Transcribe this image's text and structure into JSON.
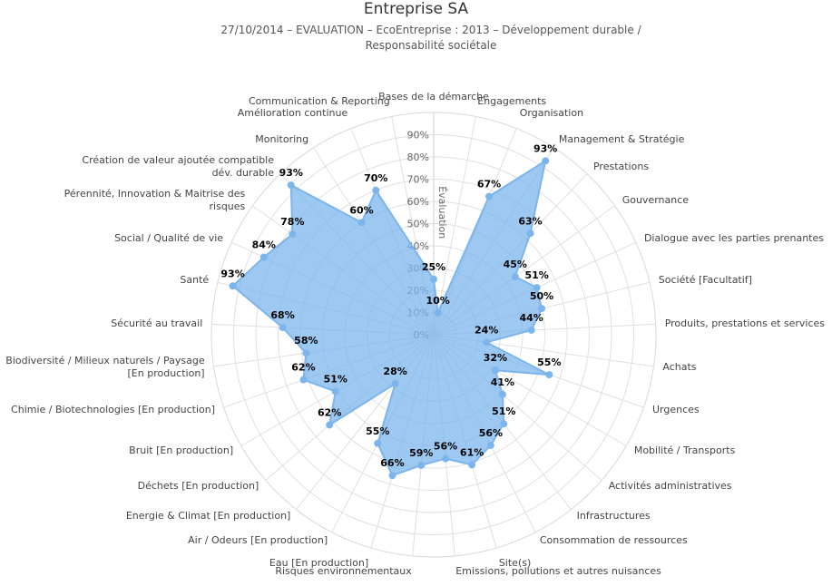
{
  "chart_data": {
    "type": "radar",
    "title": "Entreprise SA",
    "subtitle": "27/10/2014 – EVALUATION – EcoEntreprise : 2013 – Développement durable / Responsabilité sociétale",
    "y_axis_label": "Évaluation",
    "categories": [
      "Bases de la démarche",
      "Engagements",
      "Organisation",
      "Management & Stratégie",
      "Prestations",
      "Gouvernance",
      "Dialogue avec les parties prenantes",
      "Société [Facultatif]",
      "Produits, prestations et services",
      "Achats",
      "Urgences",
      "Mobilité / Transports",
      "Activités administratives",
      "Infrastructures",
      "Consommation de ressources",
      "Site(s)",
      "Emissions, pollutions et autres nuisances",
      "Risques environnementaux",
      "Eau [En production]",
      "Air / Odeurs [En production]",
      "Energie & Climat [En production]",
      "Déchets [En production]",
      "Bruit [En production]",
      "Chimie / Biotechnologies [En production]",
      "Biodiversité / Milieux naturels / Paysage [En production]",
      "Sécurité au travail",
      "Santé",
      "Social / Qualité de vie",
      "Pérennité, Innovation & Maitrise des risques",
      "Création de valeur ajoutée compatible dév. durable",
      "Monitoring",
      "Amélioration continue",
      "Communication & Reporting"
    ],
    "values": [
      25,
      10,
      67,
      93,
      63,
      45,
      51,
      50,
      44,
      24,
      55,
      32,
      41,
      51,
      56,
      61,
      56,
      59,
      66,
      55,
      28,
      62,
      51,
      62,
      58,
      68,
      93,
      84,
      78,
      93,
      60,
      70,
      null
    ],
    "value_labels": [
      "25%",
      "10%",
      "67%",
      "93%",
      "63%",
      "45%",
      "51%",
      "50%",
      "44%",
      "24%",
      "55%",
      "32%",
      "41%",
      "51%",
      "56%",
      "61%",
      "56%",
      "59%",
      "66%",
      "55%",
      "28%",
      "62%",
      "51%",
      "62%",
      "58%",
      "68%",
      "93%",
      "84%",
      "78%",
      "93%",
      "60%",
      "70%",
      null
    ],
    "color": "#7cb5ec",
    "ylim": [
      0,
      100
    ],
    "yticks": [
      {
        "value": 0,
        "label": "0%"
      },
      {
        "value": 10,
        "label": "10%"
      },
      {
        "value": 20,
        "label": "20%"
      },
      {
        "value": 30,
        "label": "30%"
      },
      {
        "value": 40,
        "label": "40%"
      },
      {
        "value": 50,
        "label": "50%"
      },
      {
        "value": 60,
        "label": "60%"
      },
      {
        "value": 70,
        "label": "70%"
      },
      {
        "value": 80,
        "label": "80%"
      },
      {
        "value": 90,
        "label": "90%"
      }
    ],
    "grid": true
  }
}
